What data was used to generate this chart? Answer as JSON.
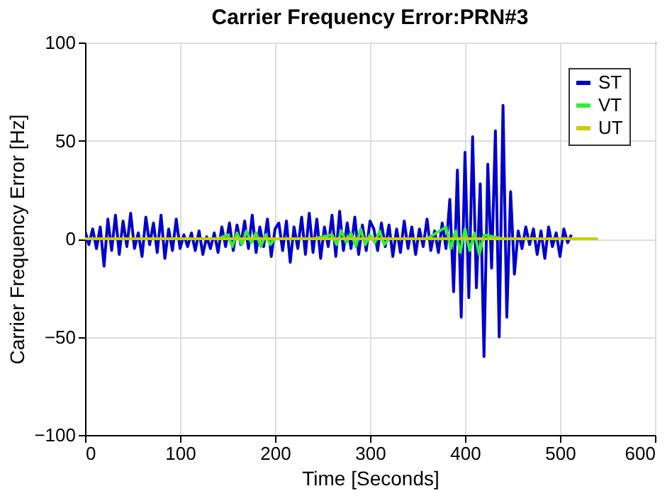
{
  "chart_data": {
    "type": "line",
    "title": "Carrier Frequency Error:PRN#3",
    "xlabel": "Time [Seconds]",
    "ylabel": "Carrier Frequency Error [Hz]",
    "xlim": [
      0,
      600
    ],
    "xticks": [
      0,
      100,
      200,
      300,
      400,
      500,
      600
    ],
    "ylim": [
      -100,
      100
    ],
    "yticks": [
      -100,
      -50,
      0,
      50,
      100
    ],
    "grid": true,
    "legend": "top right",
    "line_style": "solid",
    "series": [
      {
        "name": "ST",
        "color": "#0000cc",
        "x": [
          0,
          4,
          8,
          12,
          16,
          20,
          24,
          28,
          32,
          36,
          40,
          44,
          48,
          52,
          56,
          60,
          64,
          68,
          72,
          76,
          80,
          84,
          88,
          92,
          96,
          100,
          104,
          108,
          112,
          116,
          120,
          124,
          128,
          132,
          136,
          140,
          144,
          148,
          152,
          156,
          160,
          164,
          168,
          172,
          176,
          180,
          184,
          188,
          192,
          196,
          200,
          204,
          208,
          212,
          216,
          220,
          224,
          228,
          232,
          236,
          240,
          244,
          248,
          252,
          256,
          260,
          264,
          268,
          272,
          276,
          280,
          284,
          288,
          292,
          296,
          300,
          304,
          308,
          312,
          316,
          320,
          324,
          328,
          332,
          336,
          340,
          344,
          348,
          352,
          356,
          360,
          364,
          368,
          372,
          376,
          380,
          384,
          388,
          392,
          396,
          400,
          404,
          408,
          412,
          416,
          420,
          424,
          428,
          432,
          436,
          440,
          444,
          448,
          452,
          456,
          460,
          464,
          468,
          472,
          476,
          480,
          484,
          488,
          492,
          496,
          500,
          504,
          508,
          512
        ],
        "values": [
          4,
          -3,
          5,
          -5,
          6,
          -14,
          10,
          -6,
          12,
          -8,
          9,
          -4,
          13,
          -5,
          3,
          -9,
          11,
          -3,
          8,
          -7,
          12,
          -10,
          5,
          -6,
          10,
          -5,
          2,
          -4,
          3,
          -6,
          4,
          -8,
          1,
          -5,
          3,
          -7,
          6,
          -4,
          8,
          -6,
          7,
          -3,
          9,
          -5,
          12,
          -7,
          6,
          -4,
          10,
          -9,
          5,
          8,
          -6,
          9,
          -12,
          6,
          -5,
          11,
          -8,
          13,
          -7,
          10,
          -10,
          6,
          -4,
          12,
          -9,
          14,
          -6,
          8,
          -5,
          11,
          -8,
          7,
          -6,
          9,
          5,
          -6,
          8,
          -4,
          7,
          -9,
          5,
          -7,
          9,
          -5,
          6,
          -8,
          5,
          -4,
          10,
          -6,
          4,
          -7,
          8,
          -5,
          20,
          -27,
          35,
          -40,
          44,
          -30,
          52,
          -25,
          28,
          -60,
          38,
          -15,
          55,
          -50,
          68,
          -40,
          24,
          -18,
          4,
          -5,
          6,
          -3,
          5,
          -8,
          4,
          -10,
          6,
          -4,
          3,
          -9,
          5,
          -2,
          2
        ]
      },
      {
        "name": "VT",
        "color": "#33ee33",
        "x": [
          120,
          140,
          150,
          155,
          160,
          165,
          170,
          175,
          180,
          185,
          190,
          195,
          200,
          220,
          240,
          260,
          265,
          270,
          275,
          280,
          285,
          290,
          295,
          300,
          305,
          310,
          315,
          320,
          340,
          360,
          380,
          385,
          390,
          395,
          400,
          405,
          410,
          415,
          420,
          440,
          460
        ],
        "values": [
          0,
          0,
          2,
          -4,
          3,
          -3,
          4,
          -2,
          3,
          -4,
          2,
          -3,
          0,
          0,
          0,
          2,
          -3,
          4,
          -2,
          3,
          -4,
          5,
          -3,
          2,
          -2,
          4,
          -3,
          0,
          0,
          0,
          6,
          -5,
          4,
          -7,
          5,
          -6,
          3,
          -8,
          2,
          0,
          0
        ]
      },
      {
        "name": "UT",
        "color": "#cccc00",
        "x": [
          0,
          100,
          200,
          300,
          400,
          500,
          540
        ],
        "values": [
          0,
          0,
          0,
          0,
          0,
          0,
          0
        ]
      }
    ]
  }
}
